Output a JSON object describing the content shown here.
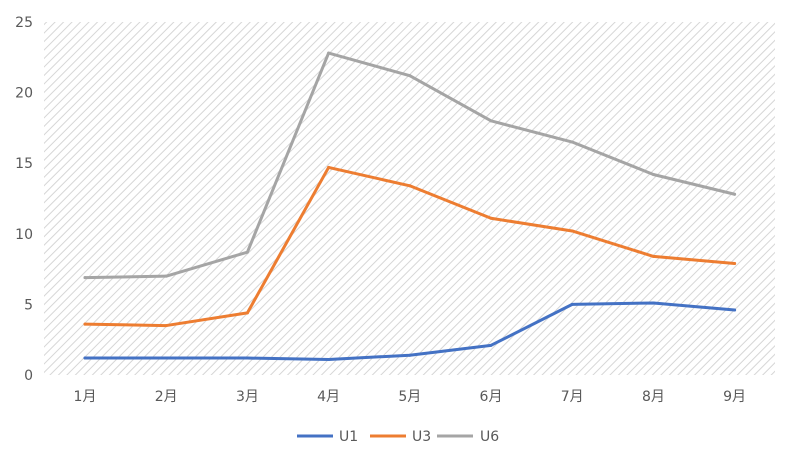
{
  "chart_data": {
    "type": "line",
    "title": "",
    "xlabel": "",
    "ylabel": "",
    "categories": [
      "1月",
      "2月",
      "3月",
      "4月",
      "5月",
      "6月",
      "7月",
      "8月",
      "9月"
    ],
    "ylim": [
      0,
      25
    ],
    "yticks": [
      "0",
      "5",
      "10",
      "15",
      "20",
      "25"
    ],
    "grid": "off",
    "plot_background": "diagonal hatch",
    "legend_position": "bottom",
    "series": [
      {
        "name": "U1",
        "color": "#4472C4",
        "values": [
          1.2,
          1.2,
          1.2,
          1.1,
          1.4,
          2.1,
          5.0,
          5.1,
          4.6
        ]
      },
      {
        "name": "U3",
        "color": "#ED7D31",
        "values": [
          3.6,
          3.5,
          4.4,
          14.7,
          13.4,
          11.1,
          10.2,
          8.4,
          7.9
        ]
      },
      {
        "name": "U6",
        "color": "#A5A5A5",
        "values": [
          6.9,
          7.0,
          8.7,
          22.8,
          21.2,
          18.0,
          16.5,
          14.2,
          12.8
        ]
      }
    ]
  }
}
